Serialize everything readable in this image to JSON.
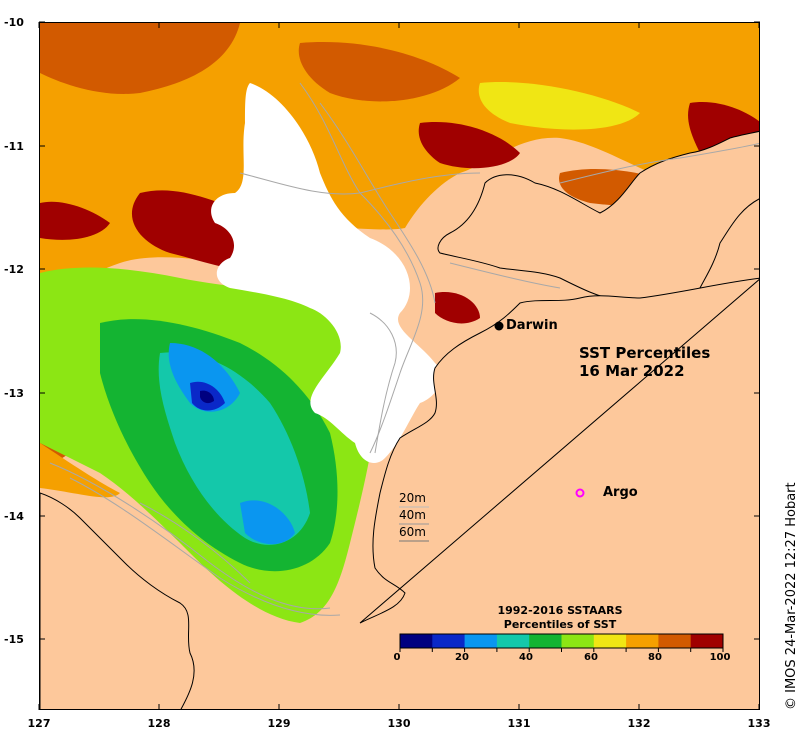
{
  "title": {
    "line1": "SST Percentiles",
    "line2": "16 Mar 2022"
  },
  "axes": {
    "y_ticks": [
      "-10",
      "-11",
      "-12",
      "-13",
      "-14",
      "-15"
    ],
    "x_ticks": [
      "127",
      "128",
      "129",
      "130",
      "131",
      "132",
      "133"
    ]
  },
  "places": {
    "darwin": "Darwin",
    "argo": "Argo"
  },
  "depth_contours": [
    "20m",
    "40m",
    "60m"
  ],
  "colorbar": {
    "title_line1": "1992-2016 SSTAARS",
    "title_line2": "Percentiles of SST",
    "ticks": [
      "0",
      "20",
      "40",
      "60",
      "80",
      "100"
    ],
    "colors": [
      "#000080",
      "#0a28c8",
      "#0a96f0",
      "#14c8aa",
      "#14b432",
      "#8ce614",
      "#f0e614",
      "#f5a000",
      "#d25a00",
      "#a00000"
    ]
  },
  "land_color": "#fdc89b",
  "cloud_color": "#ffffff",
  "argo_marker_color": "#ff00ff",
  "copyright": "© IMOS 24-Mar-2022 12:27 Hobart"
}
